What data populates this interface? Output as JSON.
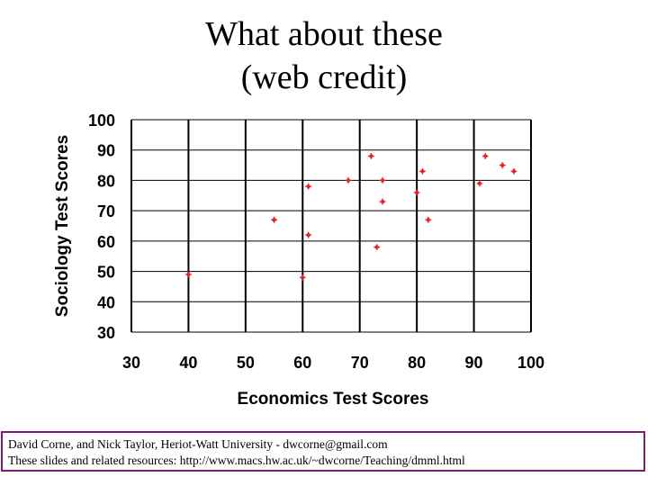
{
  "title": {
    "line1": "What about these",
    "line2": "(web credit)"
  },
  "chart_data": {
    "type": "scatter",
    "xlabel": "Economics Test Scores",
    "ylabel": "Sociology Test Scores",
    "xlim": [
      30,
      100
    ],
    "ylim": [
      30,
      100
    ],
    "xticks": [
      30,
      40,
      50,
      60,
      70,
      80,
      90,
      100
    ],
    "yticks": [
      30,
      40,
      50,
      60,
      70,
      80,
      90,
      100
    ],
    "grid": true,
    "marker_color": "#e8202a",
    "points": [
      {
        "x": 40,
        "y": 49
      },
      {
        "x": 55,
        "y": 67
      },
      {
        "x": 60,
        "y": 48
      },
      {
        "x": 61,
        "y": 62
      },
      {
        "x": 61,
        "y": 78
      },
      {
        "x": 68,
        "y": 80
      },
      {
        "x": 72,
        "y": 88
      },
      {
        "x": 73,
        "y": 58
      },
      {
        "x": 74,
        "y": 73
      },
      {
        "x": 74,
        "y": 80
      },
      {
        "x": 80,
        "y": 76
      },
      {
        "x": 81,
        "y": 83
      },
      {
        "x": 82,
        "y": 67
      },
      {
        "x": 91,
        "y": 79
      },
      {
        "x": 92,
        "y": 88
      },
      {
        "x": 95,
        "y": 85
      },
      {
        "x": 97,
        "y": 83
      }
    ]
  },
  "footer": {
    "line1": "David Corne, and Nick Taylor,  Heriot-Watt University  -  dwcorne@gmail.com",
    "line2": "These slides and related resources:   http://www.macs.hw.ac.uk/~dwcorne/Teaching/dmml.html",
    "border_color": "#7a1f6e"
  }
}
